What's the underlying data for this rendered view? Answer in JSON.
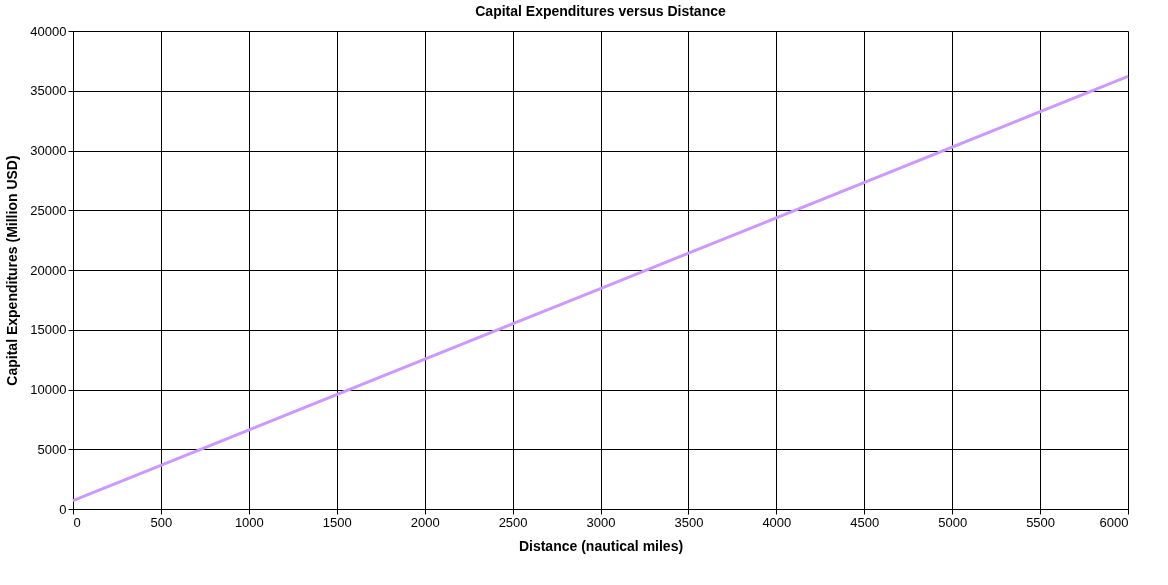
{
  "chart_data": {
    "type": "line",
    "title": "Capital Expenditures versus Distance",
    "xlabel": "Distance (nautical miles)",
    "ylabel": "Capital Expenditures (Million USD)",
    "x": [
      0,
      3000,
      6000
    ],
    "series": [
      {
        "color": "#cc99ff",
        "values": [
          700,
          18450,
          36200
        ]
      }
    ],
    "xlim": [
      0,
      6000
    ],
    "xticks": [
      0,
      500,
      1000,
      1500,
      2000,
      2500,
      3000,
      3500,
      4000,
      4500,
      5000,
      5500,
      6000
    ],
    "ylim": [
      0,
      40000
    ],
    "yticks": [
      0,
      5000,
      10000,
      15000,
      20000,
      25000,
      30000,
      35000,
      40000
    ],
    "grid": true,
    "legend": false,
    "marker": "none",
    "line_style": "solid"
  }
}
